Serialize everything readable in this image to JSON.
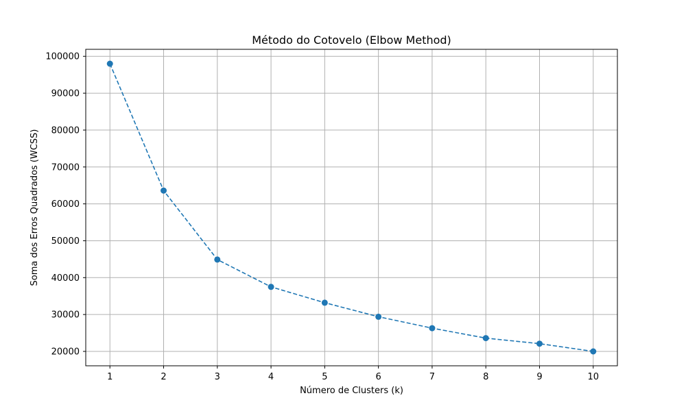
{
  "chart_data": {
    "type": "line",
    "title": "Método do Cotovelo (Elbow Method)",
    "xlabel": "Número de Clusters (k)",
    "ylabel": "Soma dos Erros Quadrados (WCSS)",
    "x": [
      1,
      2,
      3,
      4,
      5,
      6,
      7,
      8,
      9,
      10
    ],
    "series": [
      {
        "values": [
          98000,
          63600,
          44900,
          37500,
          33200,
          29400,
          26300,
          23600,
          22100,
          20000
        ]
      }
    ],
    "xticks": [
      1,
      2,
      3,
      4,
      5,
      6,
      7,
      8,
      9,
      10
    ],
    "yticks": [
      20000,
      30000,
      40000,
      50000,
      60000,
      70000,
      80000,
      90000,
      100000
    ],
    "xlim": [
      0.55,
      10.45
    ],
    "ylim": [
      16100,
      101900
    ],
    "grid": true,
    "line_style": "dashed",
    "marker": "circle",
    "colors": {
      "series": "#1f77b4",
      "grid": "#b0b0b0",
      "axis": "#000000"
    }
  }
}
